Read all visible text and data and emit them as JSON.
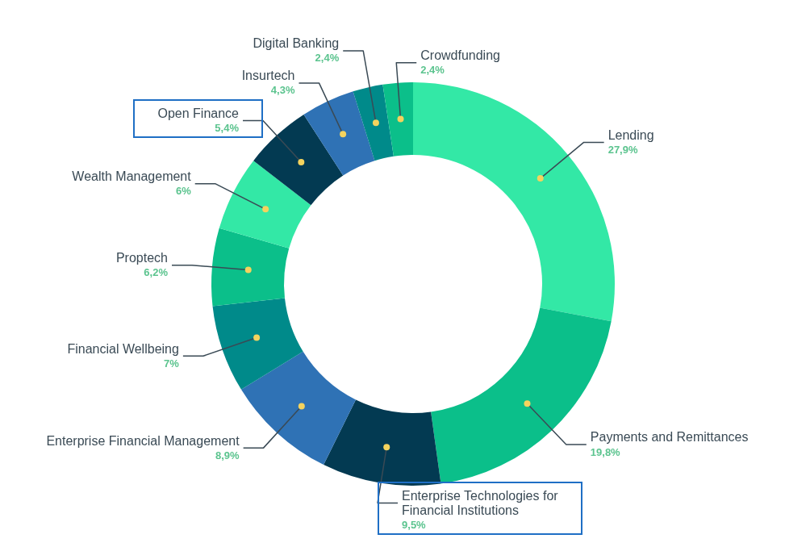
{
  "chart_data": {
    "type": "donut",
    "legend": false,
    "categories": [
      "Lending",
      "Payments and Remittances",
      "Enterprise Technologies for Financial Institutions",
      "Enterprise Financial Management",
      "Financial Wellbeing",
      "Proptech",
      "Wealth Management",
      "Open Finance",
      "Insurtech",
      "Digital Banking",
      "Crowdfunding"
    ],
    "values": [
      27.9,
      19.8,
      9.5,
      8.9,
      7,
      6.2,
      6,
      5.4,
      4.3,
      2.4,
      2.4
    ],
    "value_labels": [
      "27,9%",
      "19,8%",
      "9,5%",
      "8,9%",
      "7%",
      "6,2%",
      "6%",
      "5,4%",
      "4,3%",
      "2,4%",
      "2,4%"
    ],
    "colors": [
      "#33e8a6",
      "#0bbf8a",
      "#033a52",
      "#2f72b5",
      "#008a8a",
      "#0bbf8a",
      "#33e8a6",
      "#033a52",
      "#2f72b5",
      "#008a8a",
      "#0bbf8a"
    ]
  }
}
